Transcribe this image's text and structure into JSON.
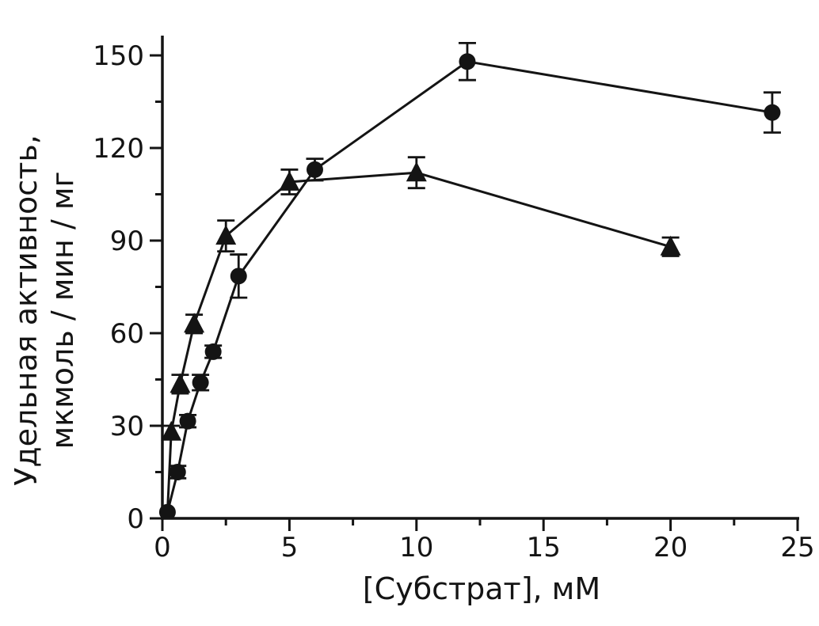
{
  "page": {
    "background": "#ffffff",
    "ink_color": "#141414"
  },
  "chart_data": {
    "type": "scatter",
    "xlabel": "[Субстрат], мМ",
    "ylabel_line1": "Удельная активность,",
    "ylabel_line2": "мкмоль / мин / мг",
    "xlim": [
      0,
      25
    ],
    "ylim": [
      0,
      150
    ],
    "x_major_ticks": [
      0,
      5,
      10,
      15,
      20,
      25
    ],
    "x_minor_ticks": [
      2.5,
      7.5,
      12.5,
      17.5,
      22.5
    ],
    "y_major_ticks": [
      0,
      30,
      60,
      90,
      120,
      150
    ],
    "y_minor_ticks": [
      15,
      45,
      75,
      105,
      135
    ],
    "grid": false,
    "legend": "none",
    "color": "#141414",
    "series": [
      {
        "name": "circles",
        "marker": "circle",
        "line": "solid",
        "error_bars": true,
        "points": [
          {
            "x": 0.2,
            "y": 2,
            "err": 0
          },
          {
            "x": 0.6,
            "y": 15,
            "err": 2
          },
          {
            "x": 1.0,
            "y": 31.5,
            "err": 2
          },
          {
            "x": 1.5,
            "y": 44,
            "err": 2.5
          },
          {
            "x": 2.0,
            "y": 54,
            "err": 2
          },
          {
            "x": 3.0,
            "y": 78.5,
            "err": 7
          },
          {
            "x": 6.0,
            "y": 113,
            "err": 3.5
          },
          {
            "x": 12.0,
            "y": 148,
            "err": 6
          },
          {
            "x": 24.0,
            "y": 131.5,
            "err": 6.5
          }
        ]
      },
      {
        "name": "triangles",
        "marker": "triangle",
        "line": "solid",
        "error_bars": true,
        "points": [
          {
            "x": 0.2,
            "y": 2,
            "err": 0,
            "marker": "none"
          },
          {
            "x": 0.35,
            "y": 28,
            "err": 2
          },
          {
            "x": 0.7,
            "y": 43.5,
            "err": 3
          },
          {
            "x": 1.25,
            "y": 63,
            "err": 3
          },
          {
            "x": 2.5,
            "y": 91.5,
            "err": 5
          },
          {
            "x": 5.0,
            "y": 109,
            "err": 4
          },
          {
            "x": 10.0,
            "y": 112,
            "err": 5
          },
          {
            "x": 20.0,
            "y": 88,
            "err": 3
          }
        ]
      }
    ]
  }
}
